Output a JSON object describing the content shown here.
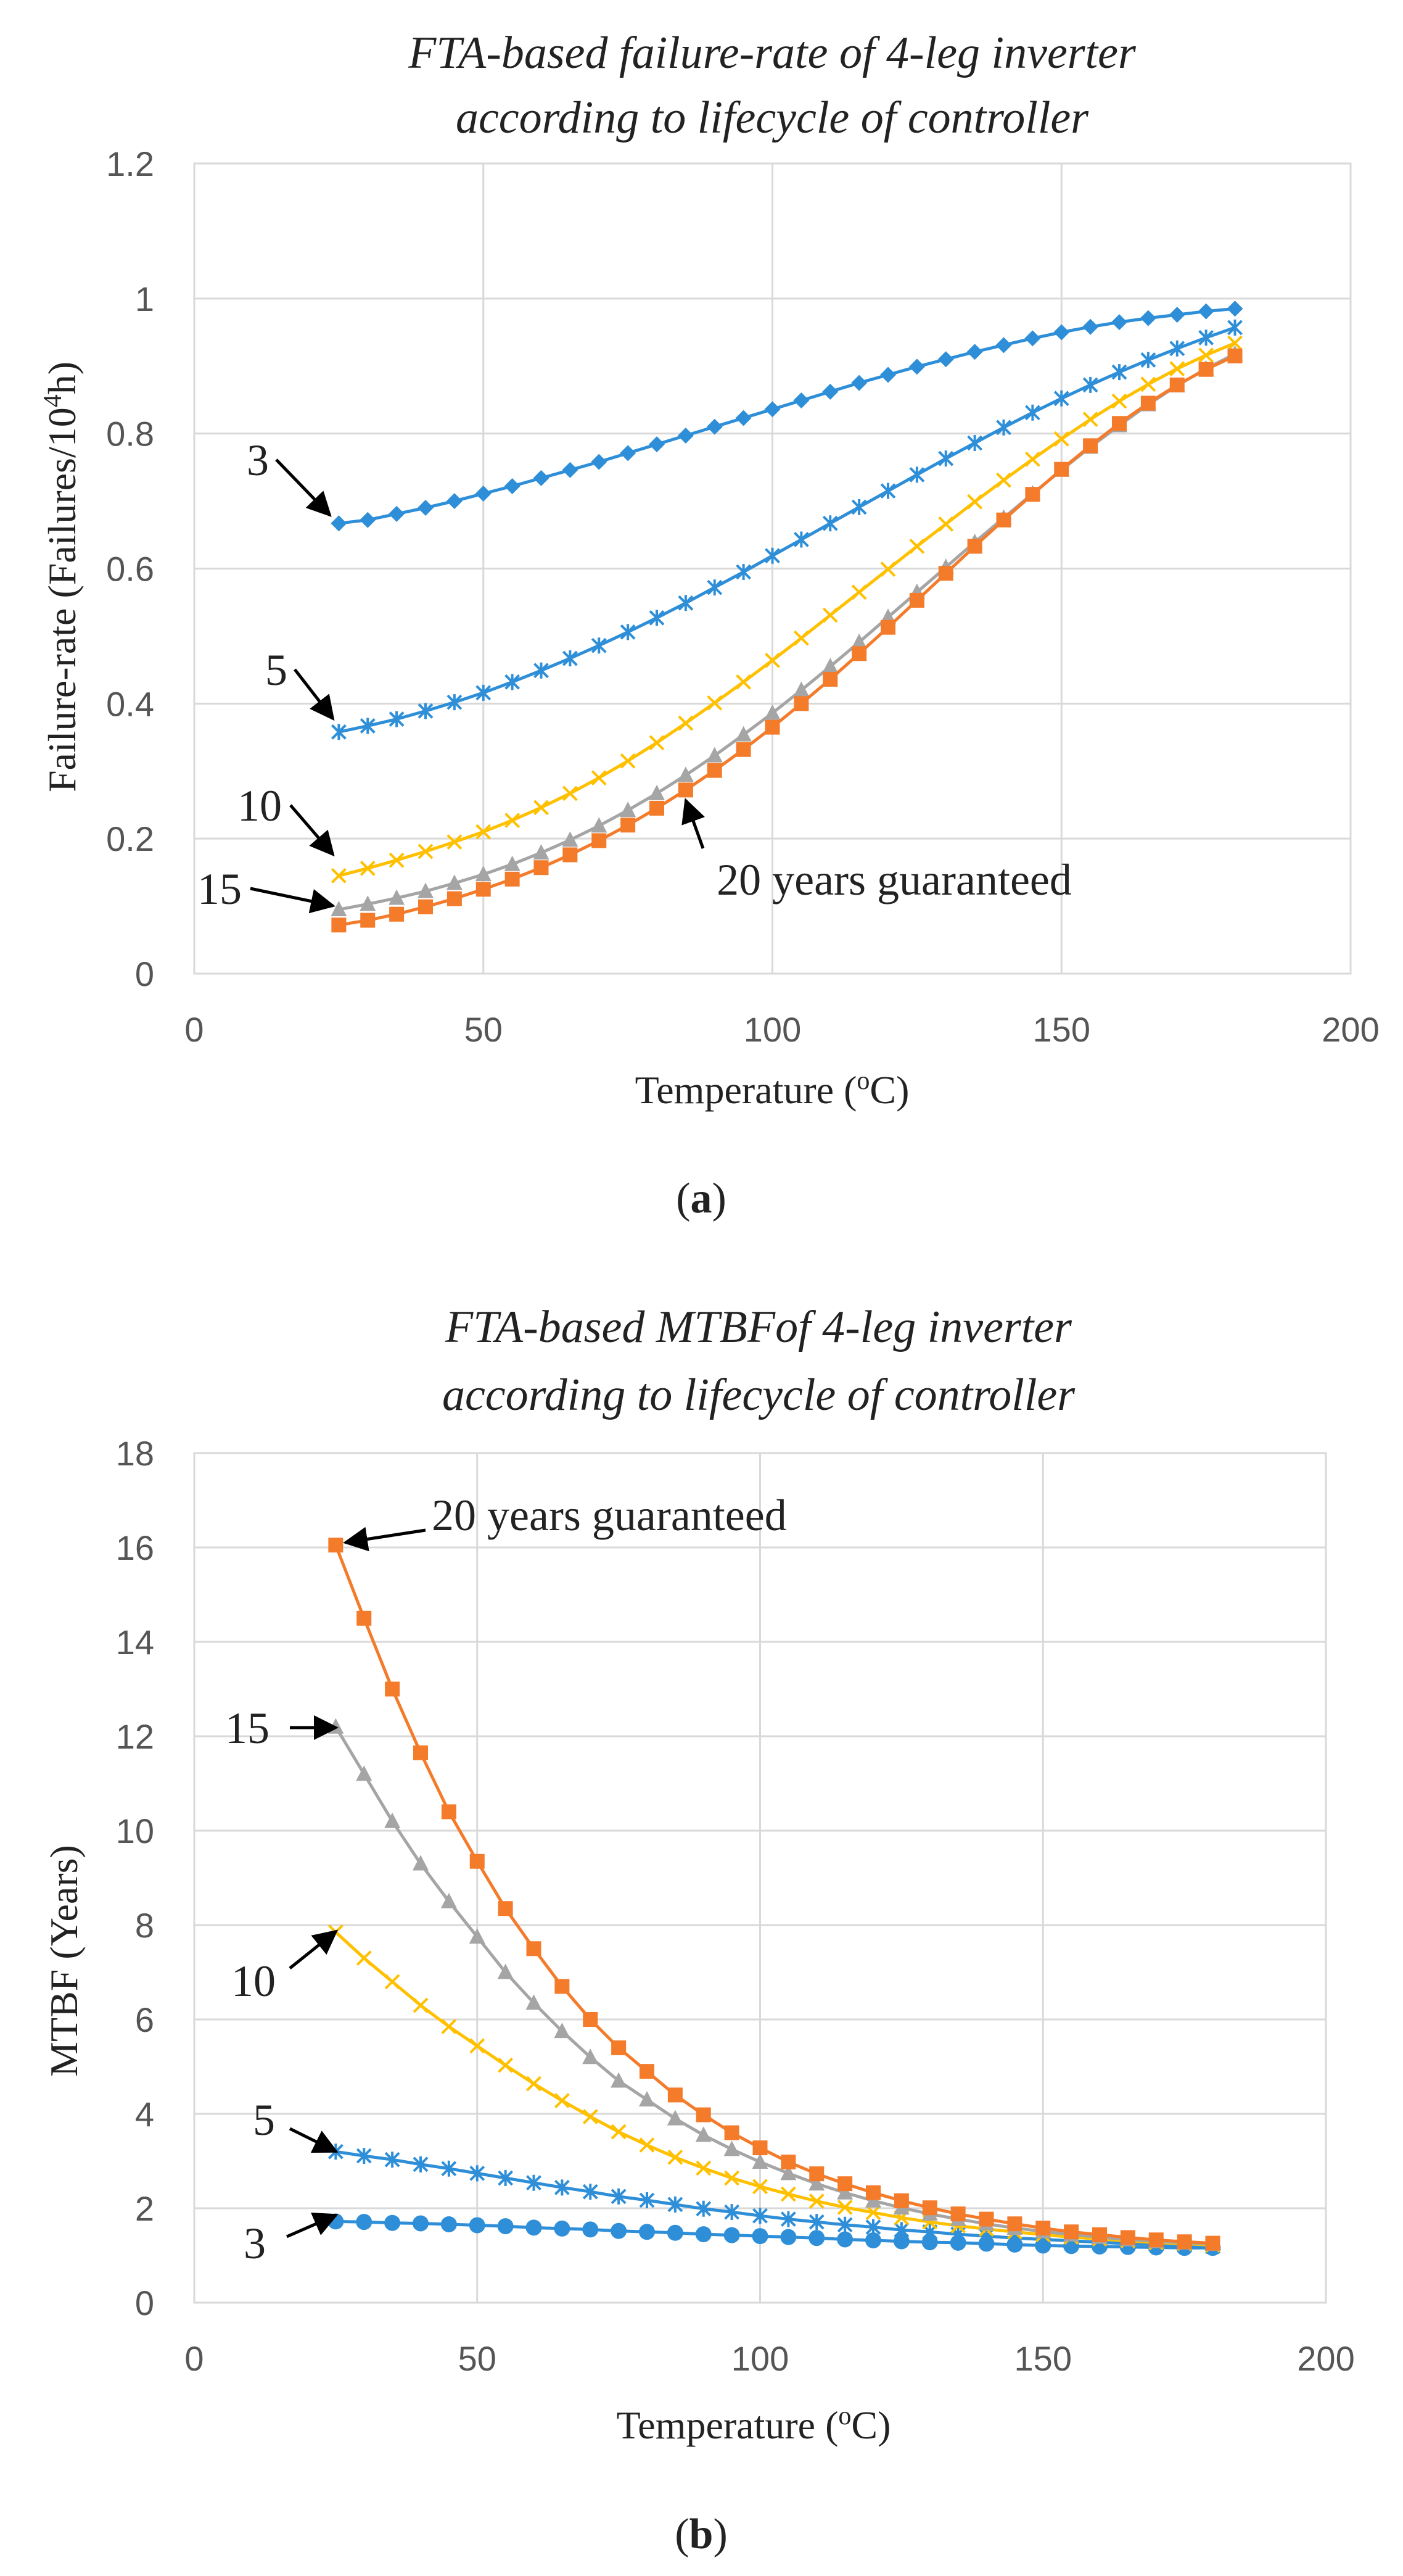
{
  "chart_data": [
    {
      "type": "line",
      "title": "FTA-based failure-rate of 4-leg inverter\naccording to lifecycle of controller",
      "xlabel": "Temperature (°C)",
      "ylabel": "Failure-rate (Failures/10⁴h)",
      "xlim": [
        0,
        200
      ],
      "ylim": [
        0,
        1.2
      ],
      "xticks": [
        "0",
        "50",
        "100",
        "150",
        "200"
      ],
      "yticks": [
        "0",
        "0.2",
        "0.4",
        "0.6",
        "0.8",
        "1",
        "1.2"
      ],
      "grid": true,
      "caption": "(a)",
      "x": [
        25,
        30,
        35,
        40,
        45,
        50,
        55,
        60,
        65,
        70,
        75,
        80,
        85,
        90,
        95,
        100,
        105,
        110,
        115,
        120,
        125,
        130,
        135,
        140,
        145,
        150,
        155,
        160,
        165,
        170,
        175,
        180
      ],
      "series": [
        {
          "color": "#2E8FD8",
          "marker": "diamond",
          "values": [
            0.667,
            0.672,
            0.681,
            0.69,
            0.7,
            0.711,
            0.722,
            0.734,
            0.746,
            0.758,
            0.771,
            0.784,
            0.797,
            0.81,
            0.823,
            0.836,
            0.849,
            0.862,
            0.875,
            0.887,
            0.899,
            0.91,
            0.921,
            0.931,
            0.941,
            0.95,
            0.958,
            0.965,
            0.971,
            0.976,
            0.981,
            0.985
          ]
        },
        {
          "color": "#2E8FD8",
          "marker": "star",
          "values": [
            0.358,
            0.367,
            0.377,
            0.389,
            0.402,
            0.416,
            0.432,
            0.449,
            0.467,
            0.486,
            0.506,
            0.527,
            0.549,
            0.572,
            0.595,
            0.619,
            0.643,
            0.667,
            0.691,
            0.715,
            0.739,
            0.763,
            0.786,
            0.809,
            0.831,
            0.852,
            0.872,
            0.891,
            0.909,
            0.926,
            0.942,
            0.957
          ]
        },
        {
          "color": "#FFC000",
          "marker": "x",
          "values": [
            0.145,
            0.156,
            0.168,
            0.181,
            0.195,
            0.21,
            0.227,
            0.246,
            0.267,
            0.29,
            0.315,
            0.342,
            0.371,
            0.401,
            0.432,
            0.464,
            0.497,
            0.531,
            0.565,
            0.599,
            0.633,
            0.666,
            0.699,
            0.731,
            0.762,
            0.792,
            0.821,
            0.848,
            0.873,
            0.896,
            0.916,
            0.934
          ]
        },
        {
          "color": "#A5A5A5",
          "marker": "triangle",
          "values": [
            0.095,
            0.103,
            0.112,
            0.122,
            0.134,
            0.147,
            0.162,
            0.179,
            0.198,
            0.219,
            0.242,
            0.267,
            0.294,
            0.323,
            0.354,
            0.386,
            0.42,
            0.455,
            0.491,
            0.528,
            0.565,
            0.602,
            0.639,
            0.675,
            0.711,
            0.746,
            0.78,
            0.812,
            0.843,
            0.871,
            0.896,
            0.918
          ]
        },
        {
          "color": "#F47B2A",
          "marker": "square",
          "values": [
            0.072,
            0.079,
            0.088,
            0.099,
            0.111,
            0.125,
            0.14,
            0.157,
            0.176,
            0.197,
            0.22,
            0.245,
            0.272,
            0.301,
            0.332,
            0.365,
            0.4,
            0.436,
            0.474,
            0.513,
            0.553,
            0.593,
            0.633,
            0.672,
            0.71,
            0.747,
            0.782,
            0.815,
            0.845,
            0.872,
            0.895,
            0.915
          ]
        }
      ],
      "annotations": [
        {
          "text": "3",
          "x_data": 25,
          "y_data": 0.667
        },
        {
          "text": "5",
          "x_data": 25,
          "y_data": 0.358
        },
        {
          "text": "10",
          "x_data": 25,
          "y_data": 0.145
        },
        {
          "text": "15",
          "x_data": 25,
          "y_data": 0.095
        },
        {
          "text": "20 years guaranteed",
          "x_data": 85,
          "y_data": 0.272
        }
      ]
    },
    {
      "type": "line",
      "title": "FTA-based MTBFof 4-leg inverter\naccording to lifecycle of controller",
      "xlabel": "Temperature (°C)",
      "ylabel": "MTBF (Years)",
      "xlim": [
        0,
        200
      ],
      "ylim": [
        0,
        18
      ],
      "xticks": [
        "0",
        "50",
        "100",
        "150",
        "200"
      ],
      "yticks": [
        "0",
        "2",
        "4",
        "6",
        "8",
        "10",
        "12",
        "14",
        "16",
        "18"
      ],
      "grid": true,
      "caption": "(b)",
      "x": [
        25,
        30,
        35,
        40,
        45,
        50,
        55,
        60,
        65,
        70,
        75,
        80,
        85,
        90,
        95,
        100,
        105,
        110,
        115,
        120,
        125,
        130,
        135,
        140,
        145,
        150,
        155,
        160,
        165,
        170,
        175,
        180
      ],
      "series": [
        {
          "color": "#2E8FD8",
          "marker": "circle",
          "values": [
            1.72,
            1.71,
            1.69,
            1.68,
            1.66,
            1.64,
            1.62,
            1.59,
            1.57,
            1.55,
            1.52,
            1.5,
            1.48,
            1.45,
            1.43,
            1.41,
            1.39,
            1.37,
            1.34,
            1.32,
            1.3,
            1.28,
            1.27,
            1.25,
            1.23,
            1.21,
            1.2,
            1.19,
            1.18,
            1.17,
            1.16,
            1.16
          ]
        },
        {
          "color": "#2E8FD8",
          "marker": "star",
          "values": [
            3.2,
            3.11,
            3.03,
            2.93,
            2.84,
            2.74,
            2.64,
            2.54,
            2.44,
            2.35,
            2.25,
            2.17,
            2.08,
            1.99,
            1.92,
            1.84,
            1.77,
            1.71,
            1.65,
            1.6,
            1.54,
            1.5,
            1.45,
            1.41,
            1.37,
            1.34,
            1.31,
            1.28,
            1.25,
            1.23,
            1.21,
            1.19
          ]
        },
        {
          "color": "#FFC000",
          "marker": "x",
          "values": [
            7.85,
            7.3,
            6.8,
            6.3,
            5.85,
            5.44,
            5.03,
            4.64,
            4.28,
            3.94,
            3.62,
            3.34,
            3.08,
            2.85,
            2.64,
            2.46,
            2.3,
            2.15,
            2.02,
            1.91,
            1.8,
            1.71,
            1.63,
            1.56,
            1.5,
            1.44,
            1.39,
            1.35,
            1.31,
            1.27,
            1.25,
            1.22
          ]
        },
        {
          "color": "#A5A5A5",
          "marker": "triangle",
          "values": [
            12.2,
            11.2,
            10.2,
            9.3,
            8.5,
            7.75,
            7.0,
            6.35,
            5.75,
            5.2,
            4.7,
            4.3,
            3.9,
            3.55,
            3.25,
            2.98,
            2.74,
            2.52,
            2.33,
            2.16,
            2.01,
            1.88,
            1.77,
            1.67,
            1.58,
            1.51,
            1.44,
            1.39,
            1.34,
            1.3,
            1.27,
            1.24
          ]
        },
        {
          "color": "#F47B2A",
          "marker": "square",
          "values": [
            16.05,
            14.5,
            13.0,
            11.65,
            10.4,
            9.35,
            8.35,
            7.5,
            6.7,
            6.0,
            5.4,
            4.9,
            4.4,
            3.98,
            3.6,
            3.28,
            2.98,
            2.73,
            2.52,
            2.33,
            2.16,
            2.01,
            1.88,
            1.77,
            1.67,
            1.58,
            1.5,
            1.44,
            1.38,
            1.33,
            1.29,
            1.26
          ]
        }
      ],
      "annotations": [
        {
          "text": "20 years guaranteed",
          "x_data": 25,
          "y_data": 16.05
        },
        {
          "text": "15",
          "x_data": 25,
          "y_data": 12.2
        },
        {
          "text": "10",
          "x_data": 25,
          "y_data": 7.85
        },
        {
          "text": "5",
          "x_data": 25,
          "y_data": 3.2
        },
        {
          "text": "3",
          "x_data": 25,
          "y_data": 1.72
        }
      ]
    }
  ]
}
